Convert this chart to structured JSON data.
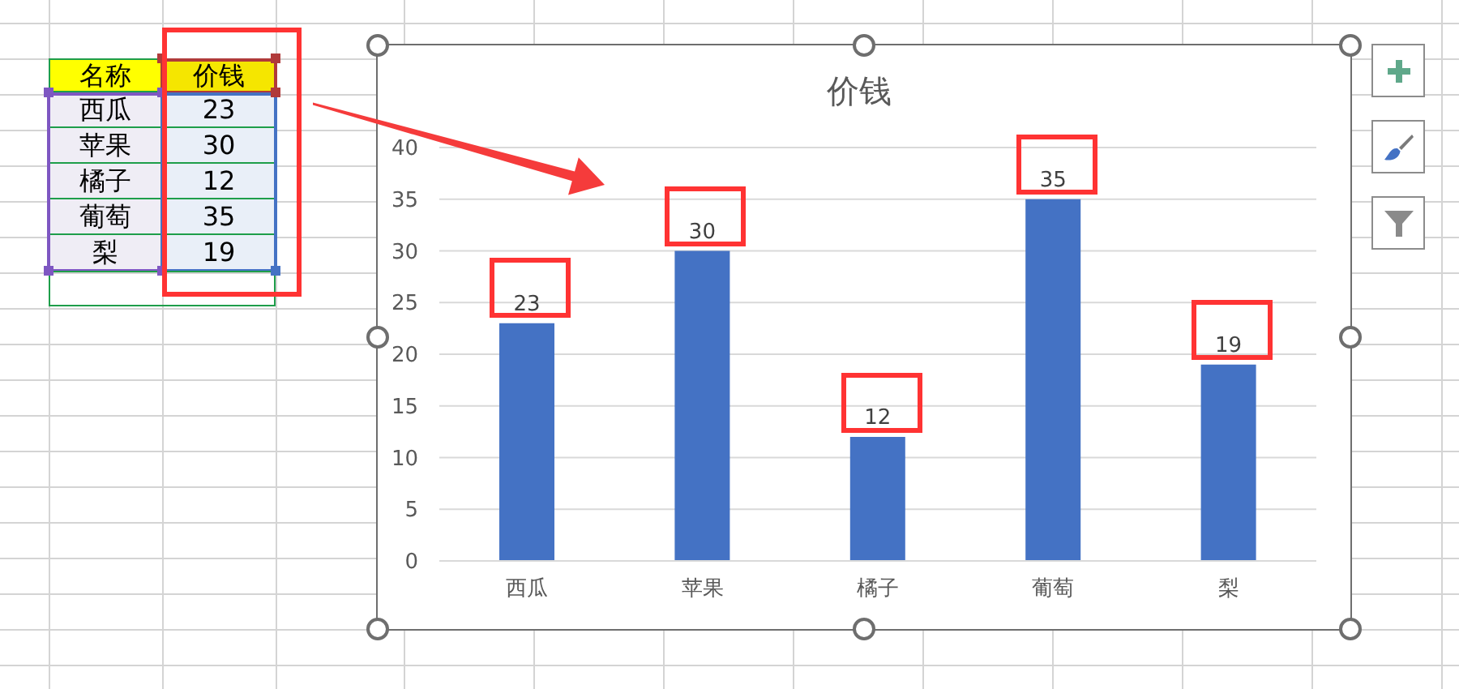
{
  "chart_data": [
    {
      "type": "other",
      "annotations": [
        "名称",
        "价钱"
      ],
      "categories": [
        "西瓜",
        "苹果",
        "橘子",
        "葡萄",
        "梨"
      ],
      "values": [
        23,
        30,
        12,
        35,
        19
      ],
      "data_labels": true
    },
    {
      "type": "bar",
      "title": "价钱",
      "categories": [
        "西瓜",
        "苹果",
        "橘子",
        "葡萄",
        "梨"
      ],
      "values": [
        23,
        30,
        12,
        35,
        19
      ],
      "color": "#4472c4",
      "ylim": [
        0,
        40
      ],
      "yticks": [
        0,
        5,
        10,
        15,
        20,
        25,
        30,
        35,
        40
      ],
      "grid": "y",
      "data_labels": true
    }
  ]
}
